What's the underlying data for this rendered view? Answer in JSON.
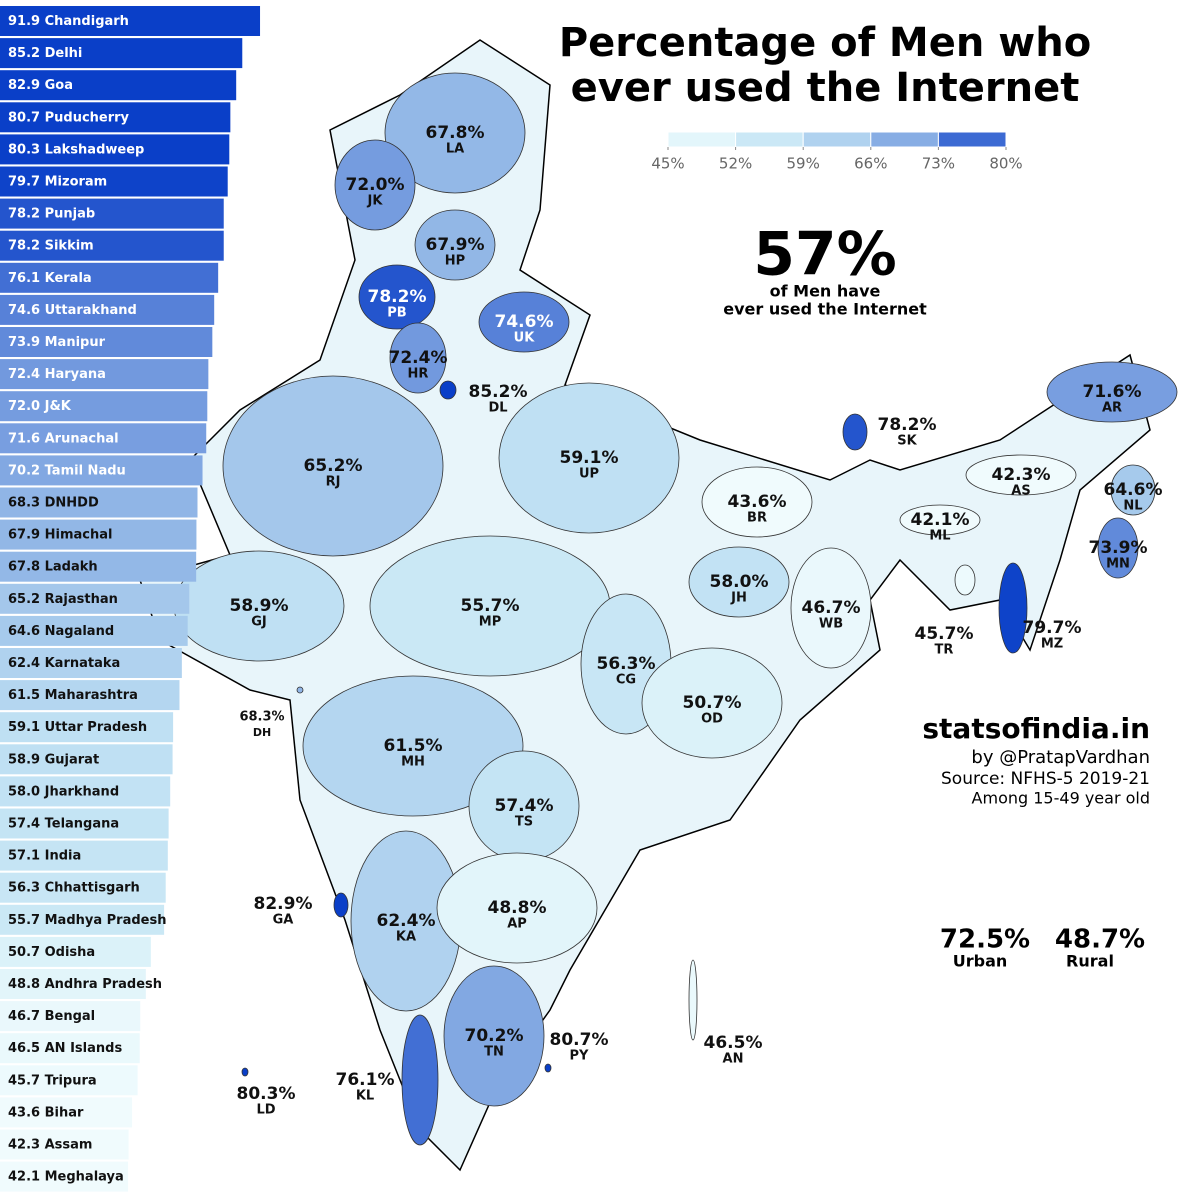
{
  "title": [
    "Percentage of Men who",
    "ever used the Internet"
  ],
  "legend": {
    "ticks": [
      {
        "value": 45,
        "label": "45%"
      },
      {
        "value": 52,
        "label": "52%"
      },
      {
        "value": 59,
        "label": "59%"
      },
      {
        "value": 66,
        "label": "66%"
      },
      {
        "value": 73,
        "label": "73%"
      },
      {
        "value": 80,
        "label": "80%"
      }
    ]
  },
  "headline": {
    "value": 57,
    "label": "57%",
    "caption": [
      "of Men have",
      "ever used the Internet"
    ]
  },
  "credits": {
    "site": "statsofindia.in",
    "author": "by @PratapVardhan",
    "source": "Source: NFHS-5 2019-21",
    "note": "Among 15-49 year old"
  },
  "urban": {
    "value": 72.5,
    "label": "72.5%",
    "name": "Urban"
  },
  "rural": {
    "value": 48.7,
    "label": "48.7%",
    "name": "Rural"
  },
  "ranking": {
    "names": [
      "Chandigarh",
      "Delhi",
      "Goa",
      "Puducherry",
      "Lakshadweep",
      "Mizoram",
      "Punjab",
      "Sikkim",
      "Kerala",
      "Uttarakhand",
      "Manipur",
      "Haryana",
      "J&K",
      "Arunachal",
      "Tamil Nadu",
      "DNHDD",
      "Himachal",
      "Ladakh",
      "Rajasthan",
      "Nagaland",
      "Karnataka",
      "Maharashtra",
      "Uttar Pradesh",
      "Gujarat",
      "Jharkhand",
      "Telangana",
      "India",
      "Chhattisgarh",
      "Madhya Pradesh",
      "Odisha",
      "Andhra Pradesh",
      "Bengal",
      "AN Islands",
      "Tripura",
      "Bihar",
      "Assam",
      "Meghalaya"
    ],
    "values": [
      91.9,
      85.2,
      82.9,
      80.7,
      80.3,
      79.7,
      78.2,
      78.2,
      76.1,
      74.6,
      73.9,
      72.4,
      72.0,
      71.6,
      70.2,
      68.3,
      67.9,
      67.8,
      65.2,
      64.6,
      62.4,
      61.5,
      59.1,
      58.9,
      58.0,
      57.4,
      57.1,
      56.3,
      55.7,
      50.7,
      48.8,
      46.7,
      46.5,
      45.7,
      43.6,
      42.3,
      42.1
    ],
    "value_labels": [
      "91.9",
      "85.2",
      "82.9",
      "80.7",
      "80.3",
      "79.7",
      "78.2",
      "78.2",
      "76.1",
      "74.6",
      "73.9",
      "72.4",
      "72.0",
      "71.6",
      "70.2",
      "68.3",
      "67.9",
      "67.8",
      "65.2",
      "64.6",
      "62.4",
      "61.5",
      "59.1",
      "58.9",
      "58.0",
      "57.4",
      "57.1",
      "56.3",
      "55.7",
      "50.7",
      "48.8",
      "46.7",
      "46.5",
      "45.7",
      "43.6",
      "42.3",
      "42.1"
    ]
  },
  "states": [
    {
      "name": "LA",
      "value": 67.8,
      "label": "67.8%"
    },
    {
      "name": "JK",
      "value": 72.0,
      "label": "72.0%"
    },
    {
      "name": "HP",
      "value": 67.9,
      "label": "67.9%"
    },
    {
      "name": "PB",
      "value": 78.2,
      "label": "78.2%"
    },
    {
      "name": "UK",
      "value": 74.6,
      "label": "74.6%"
    },
    {
      "name": "HR",
      "value": 72.4,
      "label": "72.4%"
    },
    {
      "name": "DL",
      "value": 85.2,
      "label": "85.2%"
    },
    {
      "name": "RJ",
      "value": 65.2,
      "label": "65.2%"
    },
    {
      "name": "UP",
      "value": 59.1,
      "label": "59.1%"
    },
    {
      "name": "BR",
      "value": 43.6,
      "label": "43.6%"
    },
    {
      "name": "SK",
      "value": 78.2,
      "label": "78.2%"
    },
    {
      "name": "AR",
      "value": 71.6,
      "label": "71.6%"
    },
    {
      "name": "AS",
      "value": 42.3,
      "label": "42.3%"
    },
    {
      "name": "NL",
      "value": 64.6,
      "label": "64.6%"
    },
    {
      "name": "ML",
      "value": 42.1,
      "label": "42.1%"
    },
    {
      "name": "MN",
      "value": 73.9,
      "label": "73.9%"
    },
    {
      "name": "TR",
      "value": 45.7,
      "label": "45.7%"
    },
    {
      "name": "MZ",
      "value": 79.7,
      "label": "79.7%"
    },
    {
      "name": "WB",
      "value": 46.7,
      "label": "46.7%"
    },
    {
      "name": "JH",
      "value": 58.0,
      "label": "58.0%"
    },
    {
      "name": "GJ",
      "value": 58.9,
      "label": "58.9%"
    },
    {
      "name": "MP",
      "value": 55.7,
      "label": "55.7%"
    },
    {
      "name": "CG",
      "value": 56.3,
      "label": "56.3%"
    },
    {
      "name": "OD",
      "value": 50.7,
      "label": "50.7%"
    },
    {
      "name": "DH",
      "value": 68.3,
      "label": "68.3%"
    },
    {
      "name": "MH",
      "value": 61.5,
      "label": "61.5%"
    },
    {
      "name": "TS",
      "value": 57.4,
      "label": "57.4%"
    },
    {
      "name": "GA",
      "value": 82.9,
      "label": "82.9%"
    },
    {
      "name": "KA",
      "value": 62.4,
      "label": "62.4%"
    },
    {
      "name": "AP",
      "value": 48.8,
      "label": "48.8%"
    },
    {
      "name": "PY",
      "value": 80.7,
      "label": "80.7%"
    },
    {
      "name": "AN",
      "value": 46.5,
      "label": "46.5%"
    },
    {
      "name": "LD",
      "value": 80.3,
      "label": "80.3%"
    },
    {
      "name": "KL",
      "value": 76.1,
      "label": "76.1%"
    },
    {
      "name": "TN",
      "value": 70.2,
      "label": "70.2%"
    }
  ]
}
